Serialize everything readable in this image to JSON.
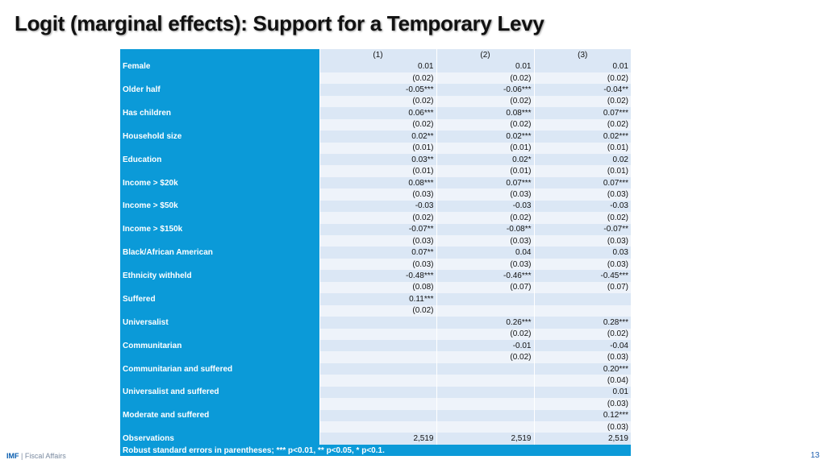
{
  "title": "Logit (marginal effects): Support for a Temporary Levy",
  "columns": [
    "(1)",
    "(2)",
    "(3)"
  ],
  "rows": [
    {
      "label": "Female",
      "coef": [
        "0.01",
        "0.01",
        "0.01"
      ],
      "se": [
        "(0.02)",
        "(0.02)",
        "(0.02)"
      ]
    },
    {
      "label": "Older half",
      "coef": [
        "-0.05***",
        "-0.06***",
        "-0.04**"
      ],
      "se": [
        "(0.02)",
        "(0.02)",
        "(0.02)"
      ]
    },
    {
      "label": "Has children",
      "coef": [
        "0.06***",
        "0.08***",
        "0.07***"
      ],
      "se": [
        "(0.02)",
        "(0.02)",
        "(0.02)"
      ]
    },
    {
      "label": "Household size",
      "coef": [
        "0.02**",
        "0.02***",
        "0.02***"
      ],
      "se": [
        "(0.01)",
        "(0.01)",
        "(0.01)"
      ]
    },
    {
      "label": "Education",
      "coef": [
        "0.03**",
        "0.02*",
        "0.02"
      ],
      "se": [
        "(0.01)",
        "(0.01)",
        "(0.01)"
      ]
    },
    {
      "label": "Income > $20k",
      "coef": [
        "0.08***",
        "0.07***",
        "0.07***"
      ],
      "se": [
        "(0.03)",
        "(0.03)",
        "(0.03)"
      ]
    },
    {
      "label": "Income > $50k",
      "coef": [
        "-0.03",
        "-0.03",
        "-0.03"
      ],
      "se": [
        "(0.02)",
        "(0.02)",
        "(0.02)"
      ]
    },
    {
      "label": "Income > $150k",
      "coef": [
        "-0.07**",
        "-0.08**",
        "-0.07**"
      ],
      "se": [
        "(0.03)",
        "(0.03)",
        "(0.03)"
      ]
    },
    {
      "label": "Black/African American",
      "coef": [
        "0.07**",
        "0.04",
        "0.03"
      ],
      "se": [
        "(0.03)",
        "(0.03)",
        "(0.03)"
      ]
    },
    {
      "label": "Ethnicity withheld",
      "coef": [
        "-0.48***",
        "-0.46***",
        "-0.45***"
      ],
      "se": [
        "(0.08)",
        "(0.07)",
        "(0.07)"
      ]
    },
    {
      "label": "Suffered",
      "coef": [
        "0.11***",
        "",
        ""
      ],
      "se": [
        "(0.02)",
        "",
        ""
      ]
    },
    {
      "label": "Universalist",
      "coef": [
        "",
        "0.26***",
        "0.28***"
      ],
      "se": [
        "",
        "(0.02)",
        "(0.02)"
      ]
    },
    {
      "label": "Communitarian",
      "coef": [
        "",
        "-0.01",
        "-0.04"
      ],
      "se": [
        "",
        "(0.02)",
        "(0.03)"
      ]
    },
    {
      "label": "Communitarian and suffered",
      "coef": [
        "",
        "",
        "0.20***"
      ],
      "se": [
        "",
        "",
        "(0.04)"
      ]
    },
    {
      "label": "Universalist and suffered",
      "coef": [
        "",
        "",
        "0.01"
      ],
      "se": [
        "",
        "",
        "(0.03)"
      ]
    },
    {
      "label": "Moderate and suffered",
      "coef": [
        "",
        "",
        "0.12***"
      ],
      "se": [
        "",
        "",
        "(0.03)"
      ]
    }
  ],
  "observations": {
    "label": "Observations",
    "values": [
      "2,519",
      "2,519",
      "2,519"
    ]
  },
  "footnote": "Robust standard errors in parentheses; *** p<0.01, ** p<0.05, * p<0.1.",
  "footer": {
    "org": "IMF",
    "separator": " | ",
    "dept": "Fiscal Affairs"
  },
  "page_number": "13"
}
